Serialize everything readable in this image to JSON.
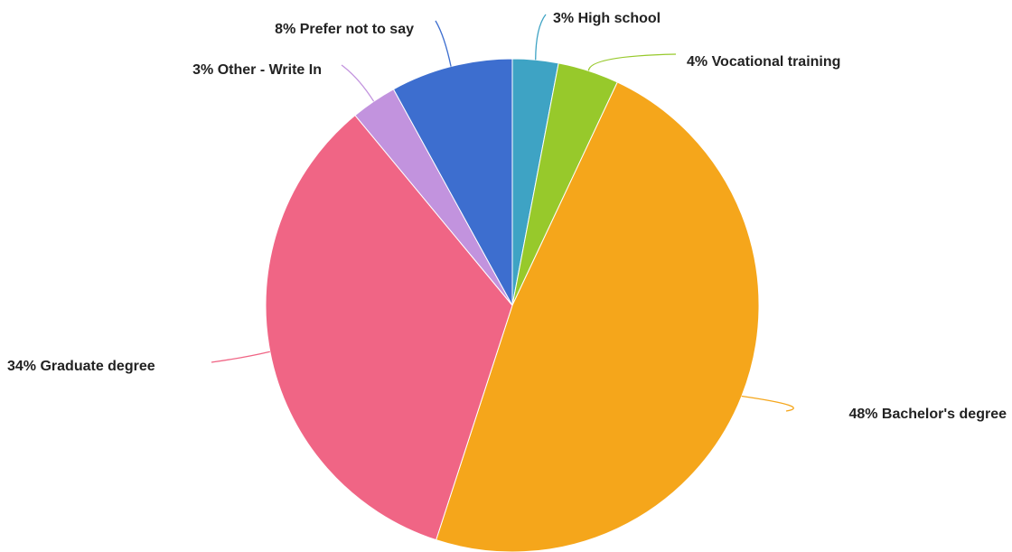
{
  "chart_data": {
    "type": "pie",
    "start_angle_deg": 0,
    "direction": "clockwise",
    "slices": [
      {
        "label": "High school",
        "display": "3% High school",
        "value": 3,
        "color": "#3ea3c4"
      },
      {
        "label": "Vocational training",
        "display": "4% Vocational training",
        "value": 4,
        "color": "#97c92b"
      },
      {
        "label": "Bachelor's degree",
        "display": "48% Bachelor's degree",
        "value": 48,
        "color": "#f5a61b"
      },
      {
        "label": "Graduate degree",
        "display": "34% Graduate degree",
        "value": 34,
        "color": "#f06585"
      },
      {
        "label": "Other - Write In",
        "display": "3% Other - Write In",
        "value": 3,
        "color": "#c293de"
      },
      {
        "label": "Prefer not to say",
        "display": "8% Prefer not to say",
        "value": 8,
        "color": "#3d6ecf"
      }
    ]
  }
}
